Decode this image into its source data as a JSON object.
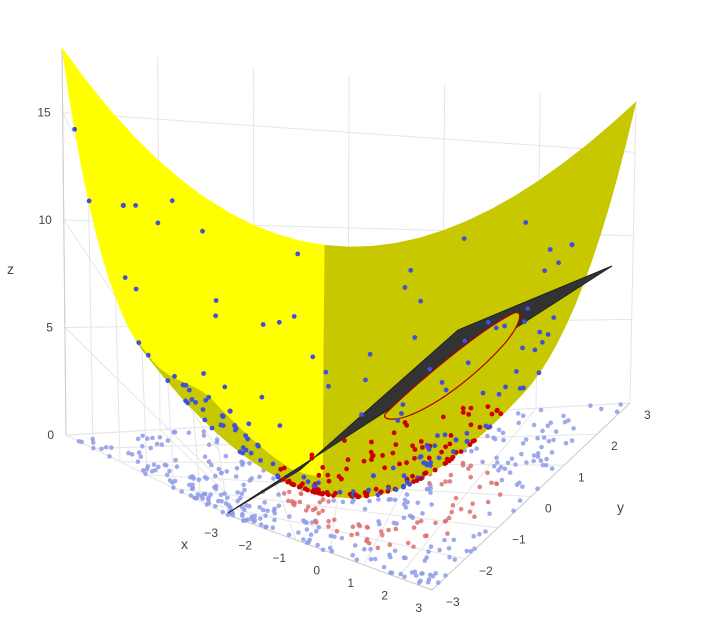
{
  "chart_data": {
    "type": "scatter",
    "title": "",
    "xlabel": "x",
    "ylabel": "y",
    "zlabel": "z",
    "xlim": [
      -3,
      3
    ],
    "ylim": [
      -3,
      3
    ],
    "zlim": [
      0,
      18
    ],
    "x_ticks": [
      "−3",
      "−2",
      "−1",
      "0",
      "1",
      "2",
      "3"
    ],
    "y_ticks": [
      "−3",
      "−2",
      "−1",
      "0",
      "1",
      "2",
      "3"
    ],
    "z_ticks": [
      "0",
      "5",
      "10",
      "15"
    ],
    "grid": true,
    "surfaces": [
      {
        "name": "",
        "expression": "z = x^2 + y^2",
        "color": "#ffff00",
        "shade": "#c8c800"
      },
      {
        "name": "",
        "expression": "plane cutting the paraboloid",
        "color": "#333333"
      }
    ],
    "scatter_series": [
      {
        "name": "",
        "description": "points on the surface and their projections on the floor",
        "color": "#3f51d6",
        "floor_color": "#8e9be8"
      },
      {
        "name": "",
        "description": "points near the plane intersection",
        "color": "#cc0000",
        "floor_color": "#dd6f6f"
      }
    ],
    "sample_points": [
      {
        "x": -2.5,
        "y": 2.4,
        "z": 12.0
      },
      {
        "x": 2.6,
        "y": 2.2,
        "z": 11.6
      },
      {
        "x": 2.8,
        "y": -2.0,
        "z": 11.8
      },
      {
        "x": -2.3,
        "y": -2.6,
        "z": 12.1
      },
      {
        "x": 0.5,
        "y": 0.3,
        "z": 0.34
      },
      {
        "x": 1.2,
        "y": -0.8,
        "z": 2.08
      },
      {
        "x": -1.5,
        "y": 1.0,
        "z": 3.25
      },
      {
        "x": 2.0,
        "y": 0.0,
        "z": 4.0
      }
    ]
  }
}
